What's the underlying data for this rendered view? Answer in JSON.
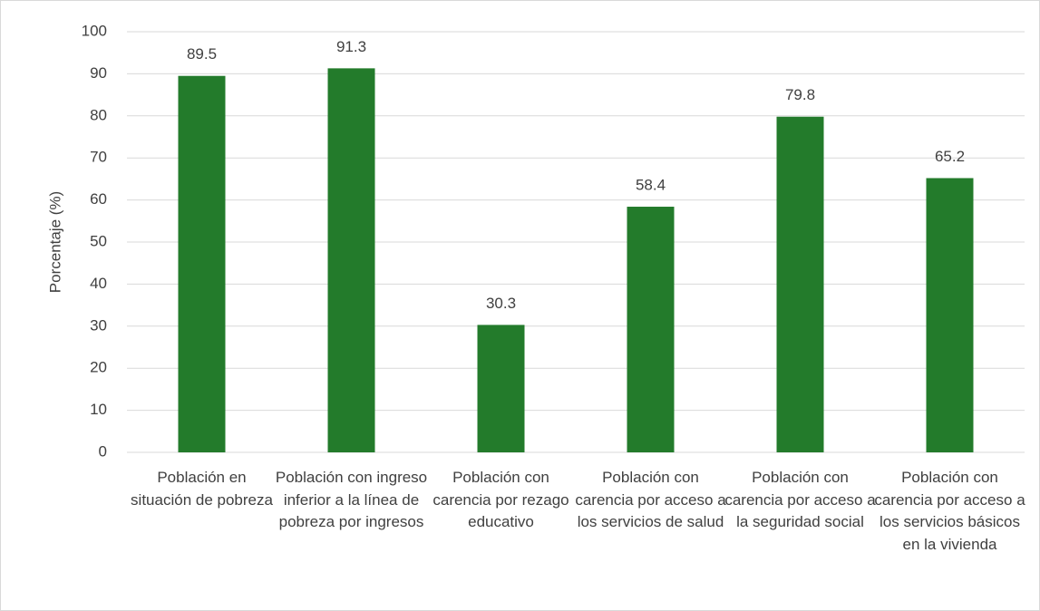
{
  "chart_data": {
    "type": "bar",
    "y_label": "Porcentaje (%)",
    "categories": [
      "Población en situación de pobreza",
      "Población con ingreso inferior a la línea de pobreza por ingresos",
      "Población con carencia por rezago educativo",
      "Población con carencia por acceso a los servicios de salud",
      "Población con carencia por acceso a la seguridad social",
      "Población con carencia por acceso a los servicios básicos en la vivienda"
    ],
    "values": [
      89.5,
      91.3,
      30.3,
      58.4,
      79.8,
      65.2
    ],
    "color": "#237b2b",
    "ylim": [
      0,
      100
    ],
    "yticks": [
      0,
      10,
      20,
      30,
      40,
      50,
      60,
      70,
      80,
      90,
      100
    ],
    "grid": true
  }
}
